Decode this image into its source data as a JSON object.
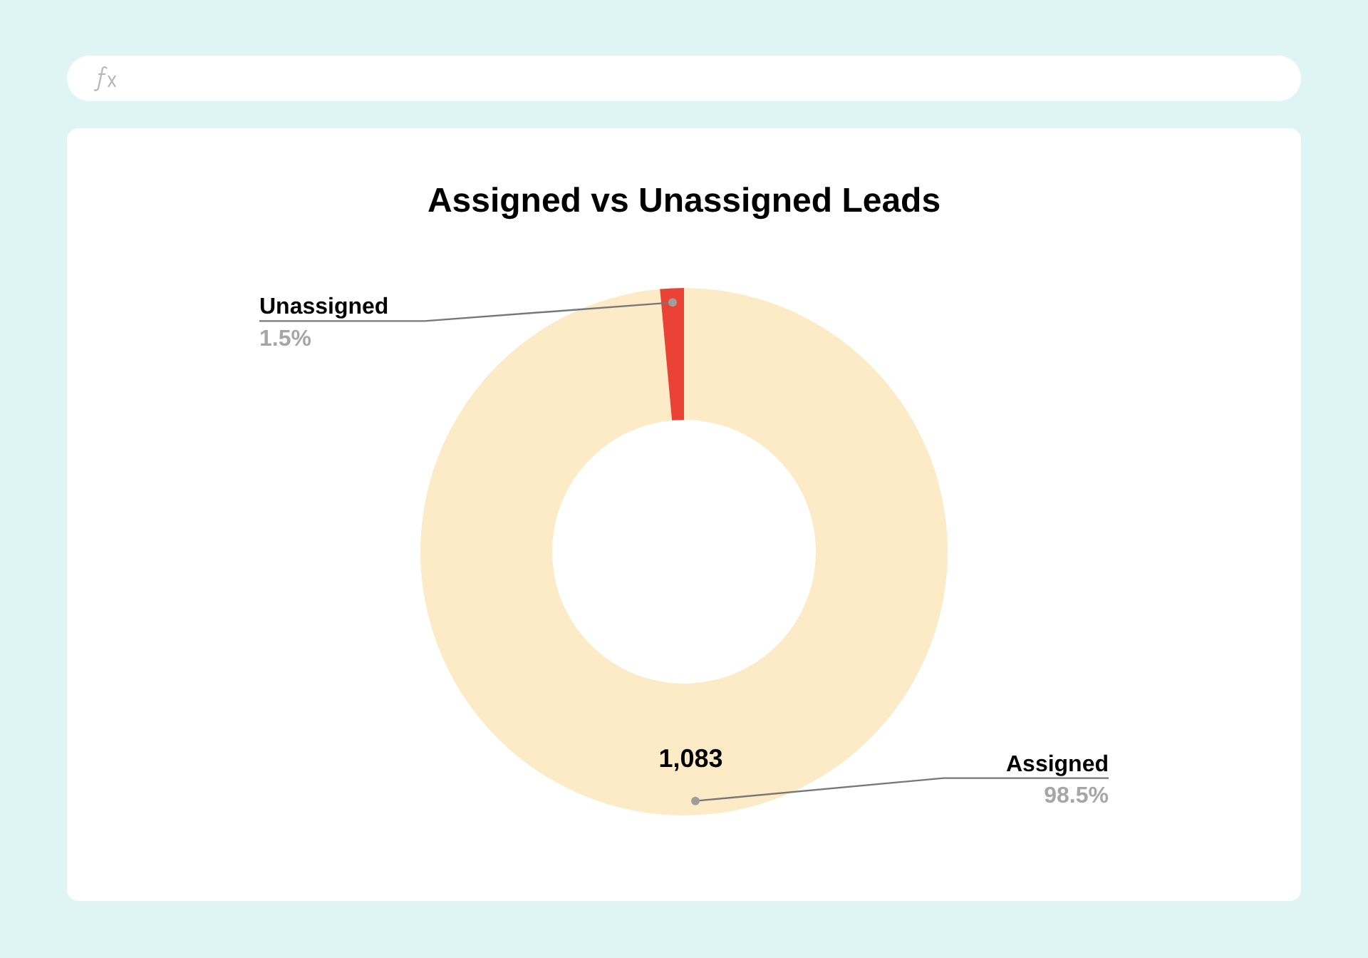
{
  "chart_data": {
    "type": "donut",
    "title": "Assigned vs Unassigned Leads",
    "categories": [
      "Assigned",
      "Unassigned"
    ],
    "values": [
      1083,
      16
    ],
    "colors": [
      "#fdebc8",
      "#ea4335"
    ],
    "value_labels": [
      "1,083",
      null
    ],
    "annotations": [
      {
        "text": "98.5%",
        "x": "Assigned"
      },
      {
        "text": "1.5%",
        "x": "Unassigned"
      }
    ],
    "legend": false
  }
}
